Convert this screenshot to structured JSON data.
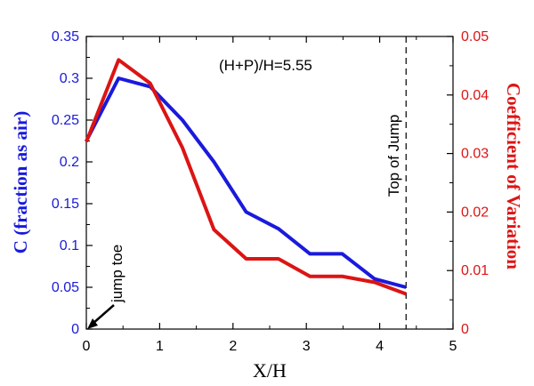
{
  "chart_data": {
    "type": "line",
    "xlabel": "X/H",
    "ylabel_left": "C (fraction as air)",
    "ylabel_right": "Coefficient of Variation",
    "xlim": [
      0,
      5
    ],
    "ylim_left": [
      0,
      0.35
    ],
    "ylim_right": [
      0,
      0.05
    ],
    "x_ticks": [
      "0",
      "1",
      "2",
      "3",
      "4",
      "5"
    ],
    "y_left_ticks": [
      "0",
      "0.05",
      "0.1",
      "0.15",
      "0.2",
      "0.25",
      "0.3",
      "0.35"
    ],
    "y_right_ticks": [
      "0",
      "0.01",
      "0.02",
      "0.03",
      "0.04",
      "0.05"
    ],
    "series": [
      {
        "name": "C (fraction as air)",
        "axis": "left",
        "color": "#1a1adc",
        "x": [
          0,
          0.44,
          0.87,
          1.31,
          1.74,
          2.18,
          2.62,
          3.05,
          3.49,
          3.93,
          4.36
        ],
        "values": [
          0.225,
          0.3,
          0.29,
          0.25,
          0.2,
          0.14,
          0.12,
          0.09,
          0.09,
          0.06,
          0.05
        ]
      },
      {
        "name": "Coefficient of Variation",
        "axis": "right",
        "color": "#dc1414",
        "x": [
          0,
          0.44,
          0.87,
          1.31,
          1.74,
          2.18,
          2.62,
          3.05,
          3.49,
          3.93,
          4.36
        ],
        "values": [
          0.032,
          0.046,
          0.042,
          0.031,
          0.017,
          0.012,
          0.012,
          0.009,
          0.009,
          0.008,
          0.006
        ]
      }
    ],
    "annotations": {
      "param": "(H+P)/H=5.55",
      "jump_toe": "jump toe",
      "top_of_jump": "Top of Jump",
      "top_of_jump_x": 4.36
    }
  }
}
